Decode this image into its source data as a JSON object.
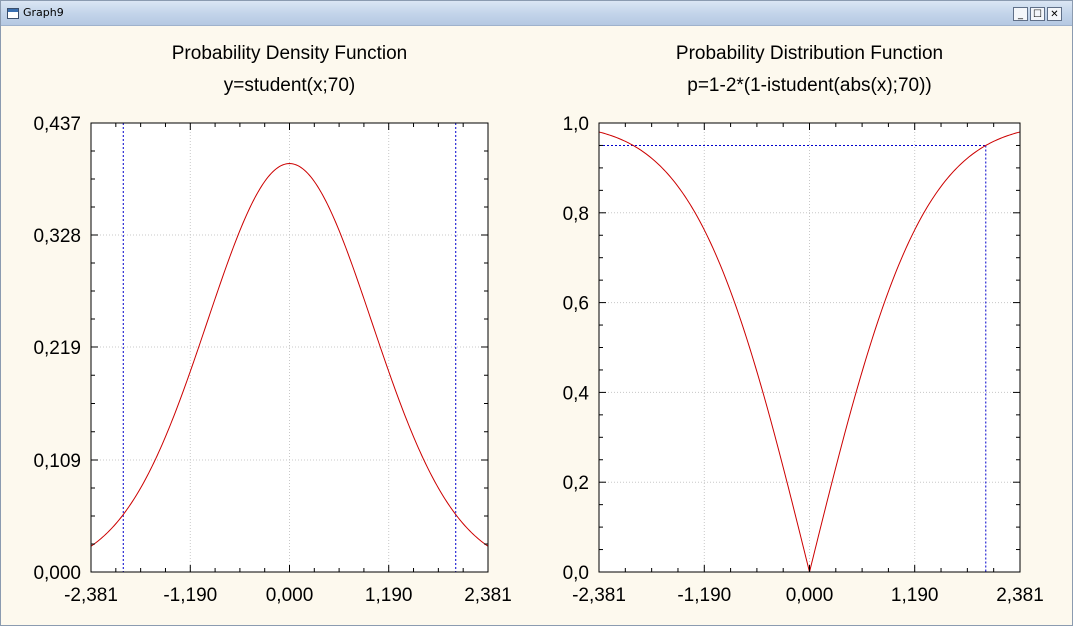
{
  "window": {
    "title": "Graph9",
    "minimize_glyph": "_",
    "maximize_glyph": "☐",
    "close_glyph": "✕"
  },
  "colors": {
    "curve": "#cc0000",
    "marker": "#0000cc",
    "grid": "#c8c8c8",
    "plot_bg": "#ffffff",
    "frame_bg": "#fdf9ee"
  },
  "chart_data": [
    {
      "type": "line",
      "title": "Probability Density Function",
      "subtitle": "y=student(x;70)",
      "xlabel": "",
      "ylabel": "",
      "xlim": [
        -2.381,
        2.381
      ],
      "ylim": [
        0,
        0.437
      ],
      "x_ticks": [
        -2.381,
        -1.19,
        0,
        1.19,
        2.381
      ],
      "x_tick_labels": [
        "-2,381",
        "-1,190",
        "0,000",
        "1,190",
        "2,381"
      ],
      "y_ticks": [
        0,
        0.109,
        0.219,
        0.328,
        0.437
      ],
      "y_tick_labels": [
        "0,000",
        "0,109",
        "0,219",
        "0,328",
        "0,437"
      ],
      "grid": true,
      "series": [
        {
          "function": "student_pdf",
          "df": 70,
          "x": [
            -2.381,
            -2.0,
            -1.5,
            -1.0,
            -0.5,
            0,
            0.5,
            1.0,
            1.5,
            2.0,
            2.381
          ],
          "y": [
            0.025,
            0.054,
            0.129,
            0.241,
            0.351,
            0.398,
            0.351,
            0.241,
            0.129,
            0.054,
            0.025
          ]
        }
      ],
      "vertical_markers": [
        -1.994,
        1.994
      ]
    },
    {
      "type": "line",
      "title": "Probability Distribution Function",
      "subtitle": "p=1-2*(1-istudent(abs(x);70))",
      "xlabel": "",
      "ylabel": "",
      "xlim": [
        -2.381,
        2.381
      ],
      "ylim": [
        0,
        1.0
      ],
      "x_ticks": [
        -2.381,
        -1.19,
        0,
        1.19,
        2.381
      ],
      "x_tick_labels": [
        "-2,381",
        "-1,190",
        "0,000",
        "1,190",
        "2,381"
      ],
      "y_ticks": [
        0,
        0.2,
        0.4,
        0.6,
        0.8,
        1.0
      ],
      "y_tick_labels": [
        "0,0",
        "0,2",
        "0,4",
        "0,6",
        "0,8",
        "1,0"
      ],
      "grid": true,
      "series": [
        {
          "function": "student_two_sided_cdf",
          "df": 70,
          "x": [
            -2.381,
            -2.0,
            -1.5,
            -1.0,
            -0.5,
            0,
            0.5,
            1.0,
            1.5,
            2.0,
            2.381
          ],
          "y": [
            0.98,
            0.951,
            0.862,
            0.679,
            0.381,
            0.0,
            0.381,
            0.679,
            0.862,
            0.951,
            0.98
          ]
        }
      ],
      "vertical_markers": [
        1.994
      ],
      "horizontal_markers": [
        0.95
      ]
    }
  ]
}
